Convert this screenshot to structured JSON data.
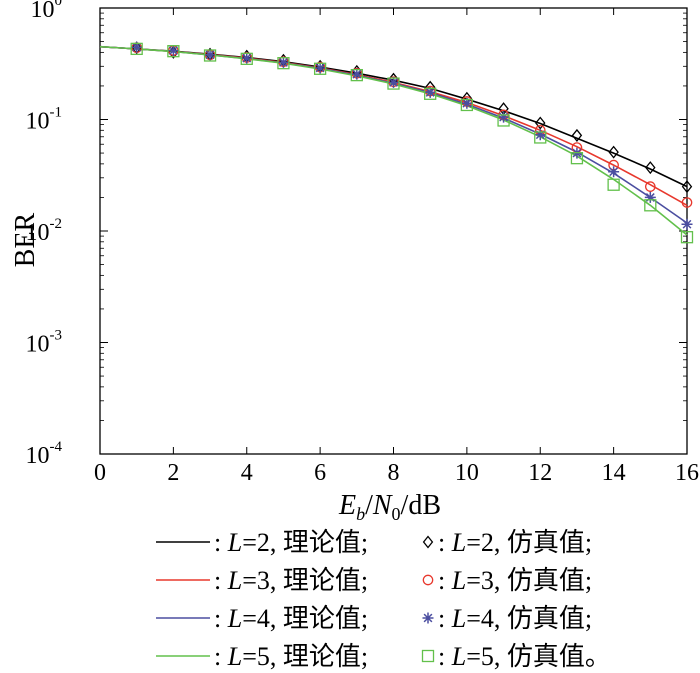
{
  "chart_data": {
    "type": "line",
    "xlabel": "E_b/N_0/dB",
    "ylabel": "BER",
    "xlim": [
      0,
      16
    ],
    "ylim": [
      0.0001,
      1
    ],
    "yscale": "log",
    "grid": false,
    "legend_position": "bottom",
    "x_ticks": [
      0,
      2,
      4,
      6,
      8,
      10,
      12,
      14,
      16
    ],
    "y_ticks": [
      {
        "value": 1,
        "base": "10",
        "exp": "0"
      },
      {
        "value": 0.1,
        "base": "10",
        "exp": "-1"
      },
      {
        "value": 0.01,
        "base": "10",
        "exp": "-2"
      },
      {
        "value": 0.001,
        "base": "10",
        "exp": "-3"
      },
      {
        "value": 0.0001,
        "base": "10",
        "exp": "-4"
      }
    ],
    "theory": [
      {
        "name": "L=2, 理论值",
        "L": "2",
        "color": "#000000",
        "x": [
          0,
          1,
          2,
          3,
          4,
          5,
          6,
          7,
          8,
          9,
          10,
          11,
          12,
          13,
          14,
          15,
          16
        ],
        "y": [
          0.45,
          0.43,
          0.41,
          0.385,
          0.36,
          0.33,
          0.295,
          0.26,
          0.225,
          0.19,
          0.152,
          0.12,
          0.092,
          0.068,
          0.05,
          0.036,
          0.025
        ]
      },
      {
        "name": "L=3, 理论值",
        "L": "3",
        "color": "#e8382d",
        "x": [
          0,
          1,
          2,
          3,
          4,
          5,
          6,
          7,
          8,
          9,
          10,
          11,
          12,
          13,
          14,
          15,
          16
        ],
        "y": [
          0.45,
          0.43,
          0.408,
          0.382,
          0.355,
          0.325,
          0.29,
          0.253,
          0.215,
          0.178,
          0.142,
          0.108,
          0.08,
          0.057,
          0.039,
          0.026,
          0.017
        ]
      },
      {
        "name": "L=4, 理论值",
        "L": "4",
        "color": "#4b4ea0",
        "x": [
          0,
          1,
          2,
          3,
          4,
          5,
          6,
          7,
          8,
          9,
          10,
          11,
          12,
          13,
          14,
          15,
          16
        ],
        "y": [
          0.45,
          0.43,
          0.407,
          0.38,
          0.352,
          0.322,
          0.287,
          0.249,
          0.211,
          0.174,
          0.137,
          0.103,
          0.074,
          0.051,
          0.033,
          0.02,
          0.0118
        ]
      },
      {
        "name": "L=5, 理论值",
        "L": "5",
        "color": "#62c04b",
        "x": [
          0,
          1,
          2,
          3,
          4,
          5,
          6,
          7,
          8,
          9,
          10,
          11,
          12,
          13,
          14,
          15,
          16
        ],
        "y": [
          0.45,
          0.43,
          0.406,
          0.379,
          0.35,
          0.32,
          0.284,
          0.246,
          0.208,
          0.17,
          0.133,
          0.099,
          0.07,
          0.047,
          0.029,
          0.017,
          0.0092
        ]
      }
    ],
    "simulation": [
      {
        "name": "L=2, 仿真值",
        "L": "2",
        "color": "#000000",
        "marker": "diamond",
        "x": [
          1,
          2,
          3,
          4,
          5,
          6,
          7,
          8,
          9,
          10,
          11,
          12,
          13,
          14,
          15,
          16
        ],
        "y": [
          0.44,
          0.4,
          0.385,
          0.37,
          0.34,
          0.3,
          0.27,
          0.23,
          0.195,
          0.155,
          0.125,
          0.093,
          0.072,
          0.051,
          0.037,
          0.025
        ]
      },
      {
        "name": "L=3, 仿真值",
        "L": "3",
        "color": "#e8382d",
        "marker": "circle",
        "x": [
          1,
          2,
          3,
          4,
          5,
          6,
          7,
          8,
          9,
          10,
          11,
          12,
          13,
          14,
          15,
          16
        ],
        "y": [
          0.44,
          0.415,
          0.38,
          0.36,
          0.33,
          0.295,
          0.26,
          0.218,
          0.18,
          0.145,
          0.11,
          0.08,
          0.056,
          0.039,
          0.025,
          0.018
        ]
      },
      {
        "name": "L=4, 仿真值",
        "L": "4",
        "color": "#4b4ea0",
        "marker": "star",
        "x": [
          1,
          2,
          3,
          4,
          5,
          6,
          7,
          8,
          9,
          10,
          11,
          12,
          13,
          14,
          15,
          16
        ],
        "y": [
          0.445,
          0.415,
          0.38,
          0.355,
          0.325,
          0.29,
          0.255,
          0.215,
          0.175,
          0.14,
          0.105,
          0.073,
          0.05,
          0.034,
          0.02,
          0.0115
        ]
      },
      {
        "name": "L=5, 仿真值",
        "L": "5",
        "color": "#62c04b",
        "marker": "square",
        "x": [
          1,
          2,
          3,
          4,
          5,
          6,
          7,
          8,
          9,
          10,
          11,
          12,
          13,
          14,
          15,
          16
        ],
        "y": [
          0.43,
          0.41,
          0.375,
          0.35,
          0.32,
          0.285,
          0.25,
          0.21,
          0.17,
          0.135,
          0.098,
          0.069,
          0.045,
          0.026,
          0.017,
          0.0088
        ]
      }
    ],
    "legend": [
      {
        "theory_L": "2",
        "theory_text": ", 理论值;",
        "sim_L": "2",
        "sim_text": ", 仿真值;"
      },
      {
        "theory_L": "3",
        "theory_text": ", 理论值;",
        "sim_L": "3",
        "sim_text": ", 仿真值;"
      },
      {
        "theory_L": "4",
        "theory_text": ", 理论值;",
        "sim_L": "4",
        "sim_text": ", 仿真值;"
      },
      {
        "theory_L": "5",
        "theory_text": ", 理论值;",
        "sim_L": "5",
        "sim_text": ", 仿真值。"
      }
    ]
  }
}
